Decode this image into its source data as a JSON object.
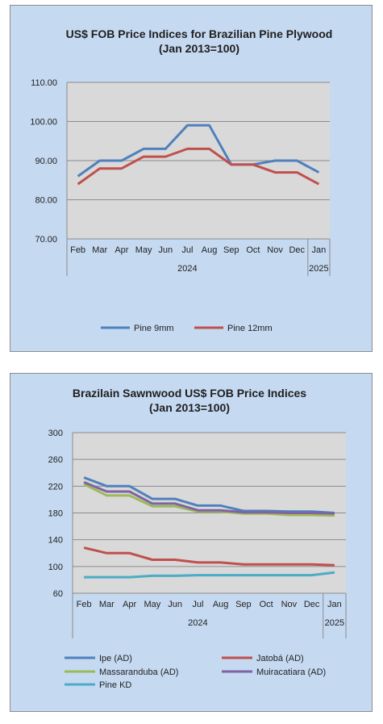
{
  "chart_data": [
    {
      "type": "line",
      "title_lines": [
        "US$ FOB Price Indices for Brazilian  Pine Plywood",
        "(Jan 2013=100)"
      ],
      "categories": [
        "Feb",
        "Mar",
        "Apr",
        "May",
        "Jun",
        "Jul",
        "Aug",
        "Sep",
        "Oct",
        "Nov",
        "Dec",
        "Jan"
      ],
      "year_labels": [
        "2024",
        "2025"
      ],
      "ylim": [
        70,
        110
      ],
      "yticks": [
        "70.00",
        "80.00",
        "90.00",
        "100.00",
        "110.00"
      ],
      "grid": true,
      "legend_position": "bottom",
      "series": [
        {
          "name": "Pine 9mm",
          "color": "#4f81bd",
          "values": [
            86,
            90,
            90,
            93,
            93,
            99,
            99,
            89,
            89,
            90,
            90,
            87
          ]
        },
        {
          "name": "Pine 12mm",
          "color": "#c0504d",
          "values": [
            84,
            88,
            88,
            91,
            91,
            93,
            93,
            89,
            89,
            87,
            87,
            84
          ]
        }
      ]
    },
    {
      "type": "line",
      "title_lines": [
        "Brazilain Sawnwood US$ FOB Price Indices",
        "(Jan 2013=100)"
      ],
      "categories": [
        "Feb",
        "Mar",
        "Apr",
        "May",
        "Jun",
        "Jul",
        "Aug",
        "Sep",
        "Oct",
        "Nov",
        "Dec",
        "Jan"
      ],
      "year_labels": [
        "2024",
        "2025"
      ],
      "ylim": [
        60,
        300
      ],
      "yticks": [
        "60",
        "100",
        "140",
        "180",
        "220",
        "260",
        "300"
      ],
      "grid": true,
      "legend_position": "bottom",
      "series": [
        {
          "name": "Ipe (AD)",
          "color": "#4f81bd",
          "values": [
            233,
            220,
            220,
            201,
            201,
            191,
            191,
            183,
            183,
            182,
            182,
            180
          ]
        },
        {
          "name": "Jatobá (AD)",
          "color": "#c0504d",
          "values": [
            128,
            120,
            120,
            110,
            110,
            106,
            106,
            103,
            103,
            103,
            103,
            102
          ]
        },
        {
          "name": "Massaranduba (AD)",
          "color": "#9bbb59",
          "values": [
            223,
            206,
            206,
            190,
            190,
            182,
            182,
            179,
            179,
            177,
            177,
            176
          ]
        },
        {
          "name": "Muiracatiara (AD)",
          "color": "#8064a2",
          "values": [
            226,
            212,
            212,
            194,
            194,
            184,
            184,
            181,
            181,
            180,
            180,
            179
          ]
        },
        {
          "name": "Pine KD",
          "color": "#4bacc6",
          "values": [
            84,
            84,
            84,
            86,
            86,
            87,
            87,
            87,
            87,
            87,
            87,
            91
          ]
        }
      ]
    }
  ]
}
